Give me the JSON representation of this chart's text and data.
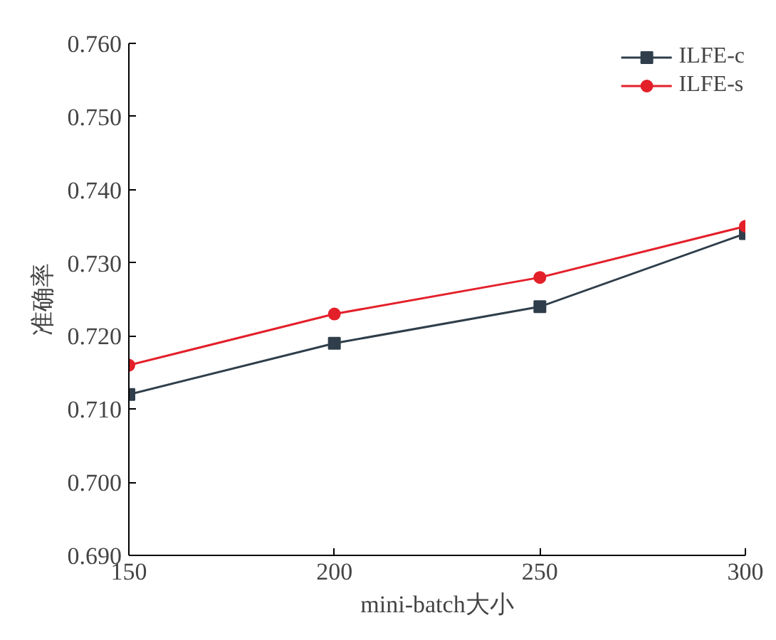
{
  "chart_data": {
    "type": "line",
    "xlabel": "mini-batch大小",
    "ylabel": "准确率",
    "x": [
      150,
      200,
      250,
      300
    ],
    "series": [
      {
        "name": "ILFE-c",
        "color": "#2f3e4a",
        "marker": "square",
        "values": [
          0.712,
          0.719,
          0.724,
          0.734
        ]
      },
      {
        "name": "ILFE-s",
        "color": "#e3202a",
        "marker": "circle",
        "values": [
          0.716,
          0.723,
          0.728,
          0.735
        ]
      }
    ],
    "xlim": [
      150,
      300
    ],
    "xticks": [
      150,
      200,
      250,
      300
    ],
    "ylim": [
      0.69,
      0.76
    ],
    "yticks": [
      {
        "value": 0.69,
        "label": "0.690"
      },
      {
        "value": 0.7,
        "label": "0.700"
      },
      {
        "value": 0.71,
        "label": "0.710"
      },
      {
        "value": 0.72,
        "label": "0.720"
      },
      {
        "value": 0.73,
        "label": "0.730"
      },
      {
        "value": 0.74,
        "label": "0.740"
      },
      {
        "value": 0.75,
        "label": "0.750"
      },
      {
        "value": 0.76,
        "label": "0.760"
      }
    ],
    "grid": false,
    "legend": "top right",
    "line_style": "solid"
  }
}
